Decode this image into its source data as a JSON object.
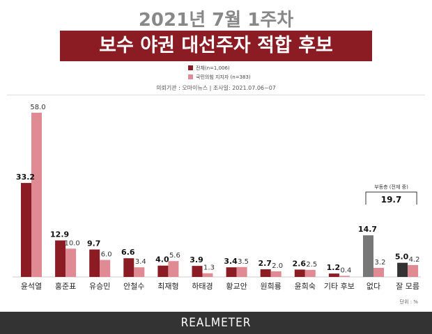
{
  "header": {
    "super_title": "2021년 7월 1주차",
    "title": "보수 야권 대선주자 적합 후보",
    "source": "의뢰기관 : 오마이뉴스   |   조사일: 2021.07.06~07"
  },
  "legend": [
    {
      "label": "전체(n=1,006)",
      "color": "#8c1c24"
    },
    {
      "label": "국민의힘 지지자 (n=383)",
      "color": "#e08a94"
    }
  ],
  "footer": {
    "brand": "REALMETER",
    "unit": "단위 : %"
  },
  "colors": {
    "series_total": "#8c1c24",
    "series_supporters": "#e08a94",
    "none_total": "#777777",
    "dontknow_total": "#333333",
    "none_supporters": "#e08a94"
  },
  "chart_data": {
    "type": "bar",
    "categories": [
      "윤석열",
      "홍준표",
      "유승민",
      "안철수",
      "최재형",
      "하태경",
      "황교안",
      "원희룡",
      "윤희숙",
      "기타 후보",
      "없다",
      "잘 모름"
    ],
    "series": [
      {
        "name": "전체(n=1,006)",
        "values": [
          33.2,
          12.9,
          9.7,
          6.6,
          4.0,
          3.9,
          3.4,
          2.7,
          2.6,
          1.2,
          14.7,
          5.0
        ]
      },
      {
        "name": "국민의힘 지지자 (n=383)",
        "values": [
          58.0,
          10.0,
          6.0,
          3.4,
          5.6,
          1.3,
          3.5,
          2.0,
          2.5,
          0.4,
          3.2,
          4.2
        ]
      }
    ],
    "value_labels": {
      "total": [
        "33.2",
        "12.9",
        "9.7",
        "6.6",
        "4.0",
        "3.9",
        "3.4",
        "2.7",
        "2.6",
        "1.2",
        "14.7",
        "5.0"
      ],
      "supporters": [
        "58.0",
        "10.0",
        "6.0",
        "3.4",
        "5.6",
        "1.3",
        "3.5",
        "2.0",
        "2.5",
        "0.4",
        "3.2",
        "4.2"
      ]
    },
    "annotation": {
      "label": "부동층 (전체 중)",
      "value": "19.7"
    },
    "ylim": [
      0,
      58.0
    ],
    "grid": false,
    "legend_position": "top-center"
  }
}
